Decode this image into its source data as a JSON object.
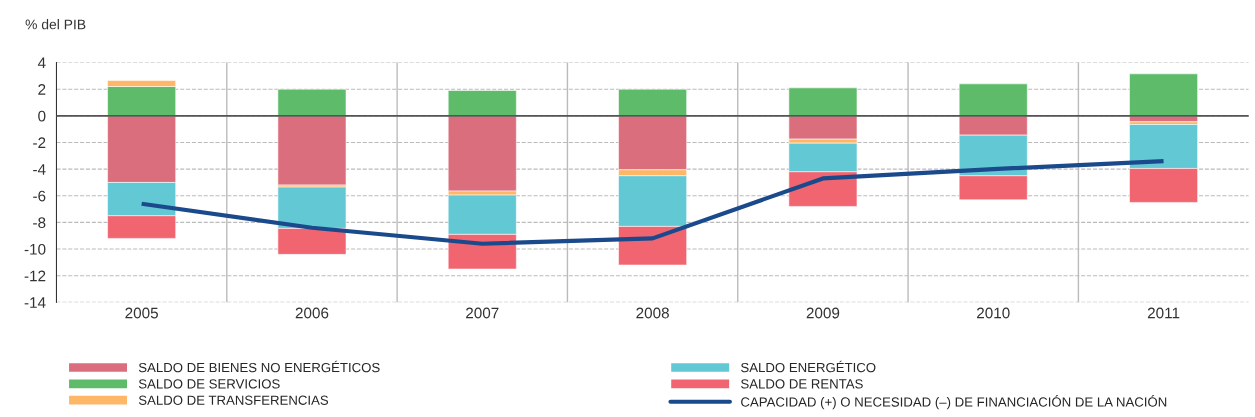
{
  "chart_data": {
    "type": "bar",
    "stacked": true,
    "ylabel": "% del PIB",
    "categories": [
      "2005",
      "2006",
      "2007",
      "2008",
      "2009",
      "2010",
      "2011"
    ],
    "series": [
      {
        "name": "SALDO DE BIENES NO ENERGÉTICOS",
        "color": "#db6e7c",
        "values": [
          -5.0,
          -5.2,
          -5.65,
          -4.05,
          -1.75,
          -1.45,
          -0.45
        ]
      },
      {
        "name": "SALDO DE SERVICIOS",
        "color": "#5dbb6a",
        "values": [
          2.2,
          2.0,
          1.9,
          2.0,
          2.1,
          2.4,
          3.15
        ]
      },
      {
        "name": "SALDO DE TRANSFERENCIAS",
        "color": "#fdb766",
        "values": [
          0.45,
          -0.15,
          -0.3,
          -0.45,
          -0.3,
          null,
          -0.2
        ]
      },
      {
        "name": "SALDO ENERGÉTICO",
        "color": "#62c8d4",
        "values": [
          -2.5,
          -3.1,
          -2.95,
          -3.8,
          -2.15,
          -3.05,
          -3.3
        ]
      },
      {
        "name": "SALDO DE RENTAS",
        "color": "#f06570",
        "values": [
          -1.7,
          -1.95,
          -2.6,
          -2.9,
          -2.6,
          -1.8,
          -2.55
        ]
      },
      {
        "name": "CAPACIDAD (+) O NECESIDAD (–) DE FINANCIACIÓN DE LA NACIÓN",
        "type": "line",
        "color": "#1b4a8c",
        "values": [
          -6.6,
          -8.4,
          -9.6,
          -9.2,
          -4.7,
          -4.0,
          -3.4
        ]
      }
    ],
    "ylim": [
      -14,
      4
    ],
    "yticks": [
      -14,
      -12,
      -10,
      -8,
      -6,
      -4,
      -2,
      0,
      2,
      4
    ],
    "grid": true,
    "legend": "bottom",
    "marker": "none",
    "line_style": "solid"
  }
}
